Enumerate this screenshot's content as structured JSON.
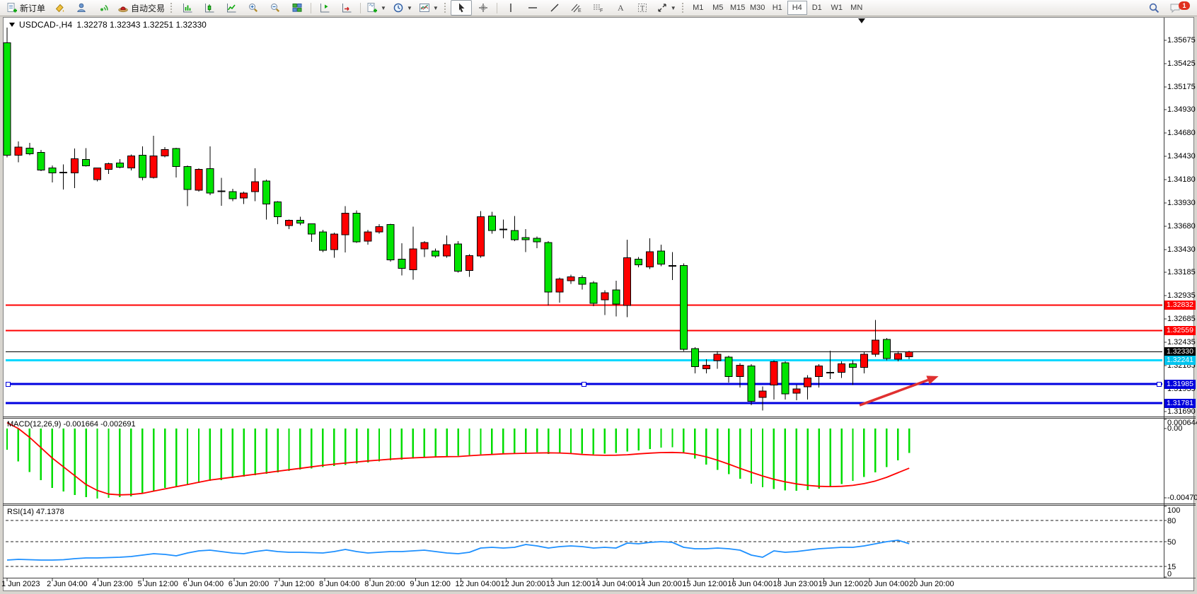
{
  "window": {
    "symbol": "USDCAD-,H4",
    "quotes": "1.32278 1.32343 1.32251 1.32330"
  },
  "toolbar": {
    "new_order": "新订单",
    "autotrading": "自动交易",
    "timeframes": [
      "M1",
      "M5",
      "M15",
      "M30",
      "H1",
      "H4",
      "D1",
      "W1",
      "MN"
    ],
    "active_timeframe": "H4",
    "notification_count": "1"
  },
  "price_axis": {
    "ticks": [
      1.35675,
      1.35425,
      1.35175,
      1.3493,
      1.3468,
      1.3443,
      1.3418,
      1.3393,
      1.3368,
      1.3343,
      1.33185,
      1.32935,
      1.32685,
      1.32435,
      1.32185,
      1.31935,
      1.3169
    ],
    "badges": [
      {
        "text": "1.32832",
        "bg": "#FF0000",
        "fg": "#FFFFFF",
        "price": 1.32832
      },
      {
        "text": "1.32559",
        "bg": "#FF0000",
        "fg": "#FFFFFF",
        "price": 1.32559
      },
      {
        "text": "1.32330",
        "bg": "#000000",
        "fg": "#FFFFFF",
        "price": 1.3233
      },
      {
        "text": "1.32241",
        "bg": "#00C4EE",
        "fg": "#FFFFFF",
        "price": 1.32241
      },
      {
        "text": "1.31985",
        "bg": "#0000DD",
        "fg": "#FFFFFF",
        "price": 1.31985
      },
      {
        "text": "1.31781",
        "bg": "#0000DD",
        "fg": "#FFFFFF",
        "price": 1.31781
      }
    ]
  },
  "time_axis": {
    "labels": [
      "1 Jun 2023",
      "2 Jun 04:00",
      "4 Jun 23:00",
      "5 Jun 12:00",
      "6 Jun 04:00",
      "6 Jun 20:00",
      "7 Jun 12:00",
      "8 Jun 04:00",
      "8 Jun 20:00",
      "9 Jun 12:00",
      "12 Jun 04:00",
      "12 Jun 20:00",
      "13 Jun 12:00",
      "14 Jun 04:00",
      "14 Jun 20:00",
      "15 Jun 12:00",
      "16 Jun 04:00",
      "18 Jun 23:00",
      "19 Jun 12:00",
      "20 Jun 04:00",
      "20 Jun 20:00"
    ]
  },
  "chart_data": [
    {
      "type": "candlestick",
      "symbol": "USDCAD",
      "period": "H4",
      "bull_color": "#FF0000",
      "bear_color": "#00E400",
      "wick_color": "#000000",
      "ylim": [
        1.31637,
        1.35819
      ],
      "grid": false,
      "ohlc": [
        [
          1.3565,
          1.35811,
          1.3442,
          1.34442
        ],
        [
          1.34442,
          1.34588,
          1.34365,
          1.34527
        ],
        [
          1.34519,
          1.34573,
          1.3444,
          1.34458
        ],
        [
          1.34473,
          1.345,
          1.3427,
          1.34281
        ],
        [
          1.34304,
          1.3433,
          1.3415,
          1.3425
        ],
        [
          1.3425,
          1.34342,
          1.34073,
          1.34258
        ],
        [
          1.3425,
          1.34512,
          1.34088,
          1.34404
        ],
        [
          1.34396,
          1.34519,
          1.3432,
          1.34327
        ],
        [
          1.34181,
          1.3431,
          1.3416,
          1.34304
        ],
        [
          1.34288,
          1.3436,
          1.3424,
          1.3435
        ],
        [
          1.34358,
          1.344,
          1.343,
          1.34312
        ],
        [
          1.34304,
          1.3445,
          1.3428,
          1.34435
        ],
        [
          1.34442,
          1.34535,
          1.34173,
          1.34204
        ],
        [
          1.34204,
          1.3465,
          1.3419,
          1.34435
        ],
        [
          1.34435,
          1.3453,
          1.3442,
          1.34504
        ],
        [
          1.34512,
          1.3452,
          1.34204,
          1.34319
        ],
        [
          1.34319,
          1.3433,
          1.33896,
          1.34073
        ],
        [
          1.34065,
          1.343,
          1.3405,
          1.34288
        ],
        [
          1.34296,
          1.34535,
          1.34012,
          1.34035
        ],
        [
          1.3405,
          1.342,
          1.339,
          1.34058
        ],
        [
          1.3405,
          1.3408,
          1.3395,
          1.33973
        ],
        [
          1.33981,
          1.3405,
          1.33919,
          1.34035
        ],
        [
          1.3405,
          1.343,
          1.3395,
          1.34158
        ],
        [
          1.34165,
          1.3418,
          1.3375,
          1.33919
        ],
        [
          1.33942,
          1.3395,
          1.337,
          1.33781
        ],
        [
          1.33688,
          1.3375,
          1.3365,
          1.33742
        ],
        [
          1.33742,
          1.3378,
          1.3369,
          1.33711
        ],
        [
          1.33704,
          1.3371,
          1.33512,
          1.33596
        ],
        [
          1.33619,
          1.3364,
          1.334,
          1.33419
        ],
        [
          1.33427,
          1.3361,
          1.33342,
          1.33596
        ],
        [
          1.33588,
          1.33896,
          1.33396,
          1.33819
        ],
        [
          1.33819,
          1.3385,
          1.335,
          1.33512
        ],
        [
          1.33519,
          1.3364,
          1.3348,
          1.33619
        ],
        [
          1.33619,
          1.337,
          1.336,
          1.33673
        ],
        [
          1.33696,
          1.33704,
          1.333,
          1.33319
        ],
        [
          1.33327,
          1.33496,
          1.3315,
          1.33227
        ],
        [
          1.33211,
          1.33673,
          1.33104,
          1.33435
        ],
        [
          1.33435,
          1.3352,
          1.3335,
          1.33504
        ],
        [
          1.33412,
          1.3344,
          1.3334,
          1.33358
        ],
        [
          1.33358,
          1.33581,
          1.3334,
          1.33481
        ],
        [
          1.33488,
          1.3352,
          1.3318,
          1.33196
        ],
        [
          1.33204,
          1.3338,
          1.33135,
          1.33365
        ],
        [
          1.33358,
          1.33842,
          1.3334,
          1.33781
        ],
        [
          1.33788,
          1.33835,
          1.336,
          1.33635
        ],
        [
          1.3365,
          1.3375,
          1.3355,
          1.33642
        ],
        [
          1.33635,
          1.33788,
          1.3352,
          1.33535
        ],
        [
          1.33558,
          1.3365,
          1.334,
          1.33535
        ],
        [
          1.3355,
          1.3357,
          1.33442,
          1.33512
        ],
        [
          1.33504,
          1.3352,
          1.32827,
          1.32973
        ],
        [
          1.32973,
          1.3313,
          1.32858,
          1.33112
        ],
        [
          1.33096,
          1.3316,
          1.3306,
          1.33135
        ],
        [
          1.33127,
          1.3315,
          1.33,
          1.33058
        ],
        [
          1.33073,
          1.3309,
          1.3282,
          1.3285
        ],
        [
          1.32889,
          1.3299,
          1.32727,
          1.32966
        ],
        [
          1.32997,
          1.33096,
          1.32712,
          1.32843
        ],
        [
          1.32827,
          1.33535,
          1.32704,
          1.33342
        ],
        [
          1.33327,
          1.3335,
          1.3324,
          1.33265
        ],
        [
          1.33242,
          1.3355,
          1.3322,
          1.33404
        ],
        [
          1.33412,
          1.33481,
          1.3325,
          1.33273
        ],
        [
          1.3325,
          1.334,
          1.331,
          1.33258
        ],
        [
          1.33258,
          1.3328,
          1.3234,
          1.32358
        ],
        [
          1.32365,
          1.3238,
          1.321,
          1.32173
        ],
        [
          1.3215,
          1.3225,
          1.321,
          1.32188
        ],
        [
          1.32235,
          1.3234,
          1.3215,
          1.32304
        ],
        [
          1.32273,
          1.3229,
          1.32,
          1.32065
        ],
        [
          1.32065,
          1.3221,
          1.3195,
          1.32188
        ],
        [
          1.3218,
          1.322,
          1.3176,
          1.318
        ],
        [
          1.31842,
          1.3196,
          1.317,
          1.31912
        ],
        [
          1.31973,
          1.32242,
          1.31819,
          1.32227
        ],
        [
          1.32212,
          1.3223,
          1.31819,
          1.31881
        ],
        [
          1.31888,
          1.3198,
          1.3181,
          1.31934
        ],
        [
          1.31957,
          1.3208,
          1.31819,
          1.3205
        ],
        [
          1.32065,
          1.322,
          1.3195,
          1.32181
        ],
        [
          1.32104,
          1.32342,
          1.3204,
          1.32112
        ],
        [
          1.32112,
          1.3223,
          1.3205,
          1.32204
        ],
        [
          1.32204,
          1.3224,
          1.31973,
          1.32165
        ],
        [
          1.32165,
          1.3233,
          1.321,
          1.32304
        ],
        [
          1.32304,
          1.32674,
          1.3228,
          1.32458
        ],
        [
          1.32465,
          1.3248,
          1.3224,
          1.32258
        ],
        [
          1.3225,
          1.3234,
          1.3223,
          1.32312
        ],
        [
          1.32278,
          1.32343,
          1.32251,
          1.3233
        ]
      ],
      "hlines": [
        {
          "price": 1.32832,
          "color": "#FF0000",
          "width": 2,
          "selected": false
        },
        {
          "price": 1.32559,
          "color": "#FF0000",
          "width": 2,
          "selected": false
        },
        {
          "price": 1.3233,
          "color": "#000000",
          "width": 1,
          "selected": false
        },
        {
          "price": 1.32241,
          "color": "#00D8FF",
          "width": 3,
          "selected": false
        },
        {
          "price": 1.31985,
          "color": "#0000E0",
          "width": 3,
          "selected": true
        },
        {
          "price": 1.31781,
          "color": "#0000E0",
          "width": 3,
          "selected": false
        }
      ],
      "arrow": {
        "from_index": 75.6,
        "from_price": 1.31758,
        "to_index": 82.6,
        "to_price": 1.3207,
        "color": "#E03030"
      }
    },
    {
      "type": "macd",
      "title": "MACD(12,26,9) -0.001664 -0.002691",
      "histogram_color": "#00DD00",
      "signal_color": "#FF0000",
      "ylim": [
        -0.005088,
        0.000672
      ],
      "y_ticks": [
        {
          "label": "0.000644",
          "value": 0.000644
        },
        {
          "label": "0.00",
          "value": 0.0
        },
        {
          "label": "-0.004708",
          "value": -0.004708
        }
      ],
      "histogram": [
        -0.00144,
        -0.00222,
        -0.00294,
        -0.00351,
        -0.00404,
        -0.00428,
        -0.00452,
        -0.00466,
        -0.00475,
        -0.00471,
        -0.00466,
        -0.00461,
        -0.00442,
        -0.00428,
        -0.00404,
        -0.00394,
        -0.0038,
        -0.0037,
        -0.00356,
        -0.00351,
        -0.00337,
        -0.00327,
        -0.00317,
        -0.00307,
        -0.00297,
        -0.00288,
        -0.00279,
        -0.0027,
        -0.00262,
        -0.00254,
        -0.00246,
        -0.00238,
        -0.0023,
        -0.00223,
        -0.00216,
        -0.0021,
        -0.00204,
        -0.00198,
        -0.00193,
        -0.00188,
        -0.00184,
        -0.0018,
        -0.00176,
        -0.00172,
        -0.00169,
        -0.00166,
        -0.00163,
        -0.0016,
        -0.00172,
        -0.0017,
        -0.00168,
        -0.0017,
        -0.00174,
        -0.0017,
        -0.00165,
        -0.00155,
        -0.00148,
        -0.00138,
        -0.0013,
        -0.00128,
        -0.0016,
        -0.00205,
        -0.00245,
        -0.0028,
        -0.0031,
        -0.0034,
        -0.00375,
        -0.00398,
        -0.0041,
        -0.0042,
        -0.00422,
        -0.00418,
        -0.00408,
        -0.00394,
        -0.00376,
        -0.00354,
        -0.00328,
        -0.00298,
        -0.00262,
        -0.00215,
        -0.001664
      ],
      "signal": [
        0.0004,
        0.0,
        -0.0006,
        -0.0013,
        -0.002,
        -0.0026,
        -0.0032,
        -0.0038,
        -0.0042,
        -0.00445,
        -0.0045,
        -0.00448,
        -0.0044,
        -0.00425,
        -0.0041,
        -0.00395,
        -0.0038,
        -0.00365,
        -0.0035,
        -0.0034,
        -0.0033,
        -0.0032,
        -0.0031,
        -0.003,
        -0.0029,
        -0.0028,
        -0.0027,
        -0.0026,
        -0.0025,
        -0.00242,
        -0.00234,
        -0.00227,
        -0.0022,
        -0.00214,
        -0.00208,
        -0.00203,
        -0.00199,
        -0.00196,
        -0.00193,
        -0.00191,
        -0.0019,
        -0.00185,
        -0.0018,
        -0.00176,
        -0.00172,
        -0.0017,
        -0.00168,
        -0.00166,
        -0.00165,
        -0.00166,
        -0.0017,
        -0.00176,
        -0.0018,
        -0.00182,
        -0.00181,
        -0.00178,
        -0.00172,
        -0.00167,
        -0.00163,
        -0.00162,
        -0.00165,
        -0.00175,
        -0.00192,
        -0.00215,
        -0.00242,
        -0.0027,
        -0.00297,
        -0.00322,
        -0.00344,
        -0.00362,
        -0.00376,
        -0.00386,
        -0.00392,
        -0.00394,
        -0.00392,
        -0.00386,
        -0.00374,
        -0.00356,
        -0.00331,
        -0.003,
        -0.002691
      ]
    },
    {
      "type": "rsi",
      "title": "RSI(14) 47.1378",
      "line_color": "#1E90FF",
      "ylim": [
        -1,
        101
      ],
      "levels": [
        80,
        50,
        15
      ],
      "y_ticks": [
        {
          "label": "100",
          "value": 100
        },
        {
          "label": "80",
          "value": 80
        },
        {
          "label": "50",
          "value": 50
        },
        {
          "label": "15",
          "value": 15
        },
        {
          "label": "0",
          "value": 0
        }
      ],
      "values": [
        24,
        25,
        24.5,
        24,
        24,
        24.5,
        26,
        27,
        27,
        27.5,
        28,
        29,
        31,
        33,
        32,
        30,
        34,
        37,
        38,
        36,
        34,
        33,
        36,
        38,
        36,
        35,
        35,
        34.5,
        34,
        36,
        39,
        36,
        34,
        35,
        36,
        36,
        37,
        38,
        36,
        34,
        33,
        35,
        41,
        42,
        41,
        42,
        46,
        44,
        41,
        43,
        44,
        43,
        41,
        42,
        41,
        48,
        47,
        49,
        50,
        49,
        42,
        40,
        40,
        41,
        40,
        38,
        31,
        28,
        37,
        35,
        36,
        38,
        40,
        41,
        42,
        42,
        44,
        47,
        50,
        52,
        47.1378
      ]
    }
  ]
}
